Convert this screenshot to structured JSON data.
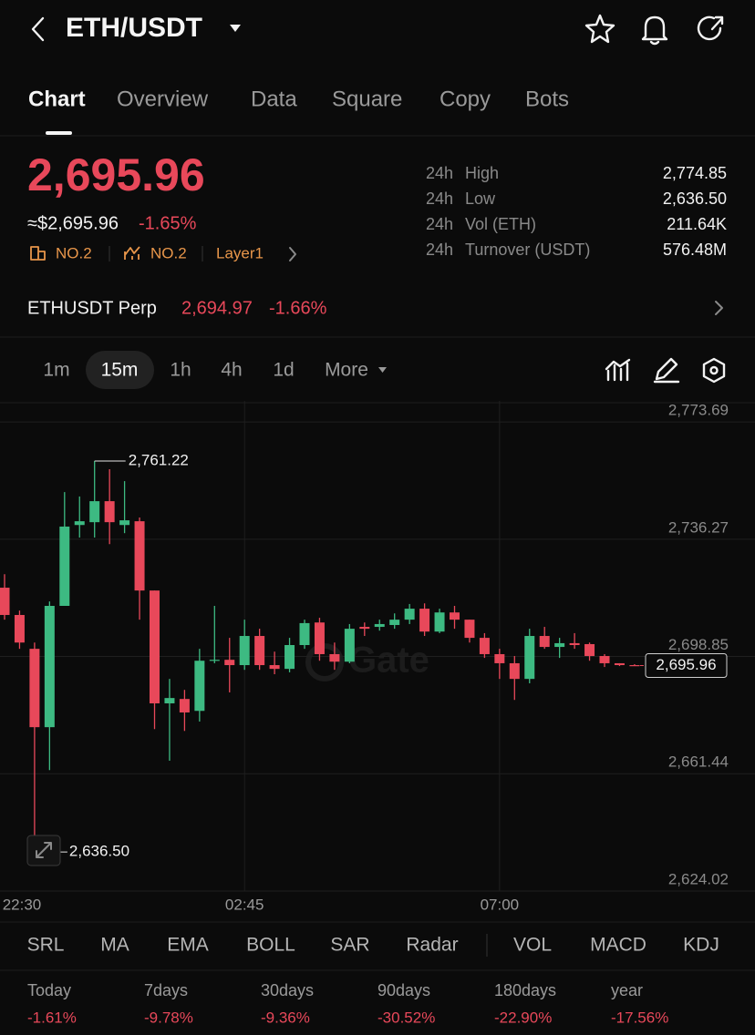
{
  "header": {
    "title": "ETH/USDT"
  },
  "tabs": [
    "Chart",
    "Overview",
    "Data",
    "Square",
    "Copy",
    "Bots"
  ],
  "ticker": {
    "price": "2,695.96",
    "fiat_price": "≈$2,695.96",
    "change": "-1.65%",
    "badges": [
      "NO.2",
      "NO.2",
      "Layer1"
    ],
    "stats": [
      {
        "period": "24h",
        "label": "High",
        "value": "2,774.85"
      },
      {
        "period": "24h",
        "label": "Low",
        "value": "2,636.50"
      },
      {
        "period": "24h",
        "label": "Vol (ETH)",
        "value": "211.64K"
      },
      {
        "period": "24h",
        "label": "Turnover (USDT)",
        "value": "576.48M"
      }
    ]
  },
  "perp": {
    "name": "ETHUSDT Perp",
    "price": "2,694.97",
    "change": "-1.66%"
  },
  "intervals": [
    "1m",
    "15m",
    "1h",
    "4h",
    "1d",
    "More"
  ],
  "chart_data": {
    "type": "candlestick",
    "watermark": "Gate",
    "open": [
      2720.8,
      2712.1,
      2701.3,
      2676.3,
      2715.0,
      2740.8,
      2741.7,
      2748.4,
      2740.8,
      2742.0,
      2719.9,
      2683.9,
      2685.3,
      2681.5,
      2697.5,
      2697.8,
      2696.1,
      2705.4,
      2696.1,
      2694.9,
      2702.5,
      2709.7,
      2699.6,
      2697.2,
      2708.3,
      2708.3,
      2708.9,
      2710.6,
      2714.1,
      2706.8,
      2712.9,
      2710.6,
      2704.8,
      2699.6,
      2696.7,
      2691.7,
      2705.4,
      2701.9,
      2703.1,
      2702.8,
      2699.0,
      2696.7,
      2696.1
    ],
    "high": [
      2725.1,
      2713.5,
      2703.3,
      2716.4,
      2751.3,
      2749.9,
      2761.22,
      2758.6,
      2754.8,
      2743.2,
      2719.9,
      2691.7,
      2688.2,
      2701.3,
      2715.0,
      2704.8,
      2710.6,
      2707.7,
      2700.4,
      2704.8,
      2710.6,
      2711.2,
      2703.3,
      2709.2,
      2709.7,
      2710.6,
      2712.6,
      2715.6,
      2715.8,
      2714.1,
      2715.0,
      2710.6,
      2706.3,
      2701.3,
      2699.0,
      2707.7,
      2708.3,
      2704.8,
      2706.3,
      2703.3,
      2699.6,
      2696.7,
      2696.4
    ],
    "low": [
      2710.6,
      2701.3,
      2636.5,
      2662.6,
      2715.0,
      2736.8,
      2736.8,
      2734.7,
      2738.2,
      2710.6,
      2675.7,
      2665.6,
      2675.1,
      2678.1,
      2696.7,
      2687.4,
      2694.6,
      2694.6,
      2693.2,
      2693.8,
      2701.3,
      2697.5,
      2694.6,
      2696.7,
      2705.4,
      2707.1,
      2707.7,
      2709.2,
      2705.4,
      2706.3,
      2707.7,
      2703.3,
      2698.4,
      2691.7,
      2685.0,
      2690.3,
      2701.3,
      2698.4,
      2701.3,
      2697.5,
      2695.5,
      2695.8,
      2695.8
    ],
    "close": [
      2712.1,
      2703.3,
      2676.3,
      2715.0,
      2740.3,
      2742.0,
      2748.4,
      2741.7,
      2742.3,
      2719.9,
      2683.9,
      2685.6,
      2681.0,
      2697.5,
      2697.8,
      2696.1,
      2705.4,
      2696.1,
      2694.9,
      2702.5,
      2709.5,
      2699.6,
      2697.2,
      2707.7,
      2707.7,
      2709.2,
      2710.6,
      2714.1,
      2706.8,
      2712.9,
      2710.6,
      2704.8,
      2699.6,
      2696.7,
      2691.7,
      2705.4,
      2701.9,
      2703.1,
      2702.5,
      2699.0,
      2696.7,
      2696.1,
      2695.96
    ],
    "up_color": "#3dba82",
    "down_color": "#e8485a",
    "ylim": [
      2624.02,
      2780.4
    ],
    "yticks": [
      {
        "value": 2624.02,
        "label": "2,624.02"
      },
      {
        "value": 2661.44,
        "label": "2,661.44"
      },
      {
        "value": 2698.85,
        "label": "2,698.85"
      },
      {
        "value": 2736.27,
        "label": "2,736.27"
      },
      {
        "value": 2773.69,
        "label": "2,773.69"
      }
    ],
    "xticks": [
      {
        "value": -1,
        "label": "22:30"
      },
      {
        "value": 16,
        "label": "02:45"
      },
      {
        "value": 33,
        "label": "07:00"
      }
    ],
    "grid": true,
    "high_label": {
      "value": 2761.22,
      "label": "2,761.22"
    },
    "low_label": {
      "value": 2636.5,
      "label": "2,636.50"
    },
    "last_price": {
      "value": 2695.96,
      "label": "2,695.96"
    }
  },
  "indicators": [
    "SRL",
    "MA",
    "EMA",
    "BOLL",
    "SAR",
    "Radar",
    "VOL",
    "MACD",
    "KDJ"
  ],
  "performance": [
    {
      "period": "Today",
      "change": "-1.61%"
    },
    {
      "period": "7days",
      "change": "-9.78%"
    },
    {
      "period": "30days",
      "change": "-9.36%"
    },
    {
      "period": "90days",
      "change": "-30.52%"
    },
    {
      "period": "180days",
      "change": "-22.90%"
    },
    {
      "period": "year",
      "change": "-17.56%"
    }
  ]
}
